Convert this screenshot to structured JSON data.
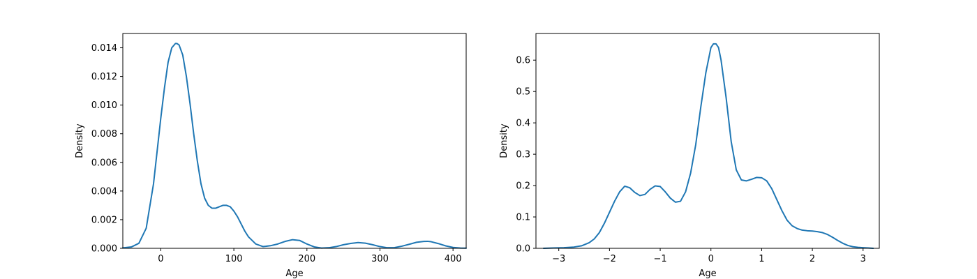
{
  "chart_data": [
    {
      "type": "line",
      "title": "",
      "xlabel": "Age",
      "ylabel": "Density",
      "xlim": [
        -52,
        418
      ],
      "ylim": [
        0,
        0.015
      ],
      "xticks": [
        0,
        100,
        200,
        300,
        400
      ],
      "xtick_labels": [
        "0",
        "100",
        "200",
        "300",
        "400"
      ],
      "yticks": [
        0,
        0.002,
        0.004,
        0.006,
        0.008,
        0.01,
        0.012,
        0.014
      ],
      "ytick_labels": [
        "0.000",
        "0.002",
        "0.004",
        "0.006",
        "0.008",
        "0.010",
        "0.012",
        "0.014"
      ],
      "grid": false,
      "series": [
        {
          "color": "#1f77b4",
          "x": [
            -52,
            -40,
            -30,
            -20,
            -10,
            0,
            5,
            10,
            15,
            20,
            22,
            25,
            30,
            35,
            40,
            45,
            50,
            55,
            60,
            65,
            70,
            75,
            80,
            85,
            90,
            95,
            100,
            105,
            110,
            115,
            120,
            130,
            140,
            150,
            160,
            170,
            180,
            190,
            200,
            210,
            220,
            230,
            240,
            250,
            260,
            270,
            280,
            290,
            300,
            310,
            320,
            330,
            340,
            350,
            360,
            365,
            370,
            380,
            390,
            400,
            410,
            418
          ],
          "y": [
            3e-05,
            0.0001,
            0.00035,
            0.0014,
            0.0045,
            0.0091,
            0.0112,
            0.013,
            0.014,
            0.0143,
            0.0143,
            0.0142,
            0.0135,
            0.012,
            0.0101,
            0.008,
            0.0061,
            0.0045,
            0.0035,
            0.003,
            0.0028,
            0.0028,
            0.0029,
            0.003,
            0.003,
            0.0029,
            0.0026,
            0.0022,
            0.0017,
            0.0012,
            0.0008,
            0.0003,
            0.00012,
            0.00018,
            0.0003,
            0.00048,
            0.0006,
            0.00055,
            0.0003,
            0.0001,
            2e-05,
            4e-05,
            0.00012,
            0.00025,
            0.00034,
            0.0004,
            0.00036,
            0.00025,
            0.00012,
            4e-05,
            5e-05,
            0.00015,
            0.00028,
            0.00042,
            0.00048,
            0.00049,
            0.00046,
            0.00033,
            0.00017,
            6e-05,
            2e-05,
            1e-05
          ]
        }
      ]
    },
    {
      "type": "line",
      "title": "",
      "xlabel": "Age",
      "ylabel": "Density",
      "xlim": [
        -3.45,
        3.32
      ],
      "ylim": [
        0,
        0.685
      ],
      "xticks": [
        -3,
        -2,
        -1,
        0,
        1,
        2,
        3
      ],
      "xtick_labels": [
        "−3",
        "−2",
        "−1",
        "0",
        "1",
        "2",
        "3"
      ],
      "yticks": [
        0,
        0.1,
        0.2,
        0.3,
        0.4,
        0.5,
        0.6
      ],
      "ytick_labels": [
        "0.0",
        "0.1",
        "0.2",
        "0.3",
        "0.4",
        "0.5",
        "0.6"
      ],
      "grid": false,
      "series": [
        {
          "color": "#1f77b4",
          "x": [
            -3.3,
            -3.1,
            -2.9,
            -2.7,
            -2.55,
            -2.4,
            -2.3,
            -2.2,
            -2.1,
            -2.0,
            -1.9,
            -1.8,
            -1.7,
            -1.6,
            -1.5,
            -1.4,
            -1.3,
            -1.2,
            -1.1,
            -1.0,
            -0.9,
            -0.8,
            -0.7,
            -0.6,
            -0.5,
            -0.4,
            -0.3,
            -0.2,
            -0.1,
            0.0,
            0.05,
            0.1,
            0.15,
            0.2,
            0.3,
            0.4,
            0.5,
            0.6,
            0.7,
            0.8,
            0.9,
            1.0,
            1.1,
            1.2,
            1.3,
            1.4,
            1.5,
            1.6,
            1.7,
            1.8,
            1.9,
            2.0,
            2.1,
            2.2,
            2.3,
            2.4,
            2.5,
            2.6,
            2.7,
            2.8,
            2.9,
            3.0,
            3.1,
            3.2
          ],
          "y": [
            0.0,
            0.001,
            0.002,
            0.004,
            0.008,
            0.018,
            0.03,
            0.05,
            0.08,
            0.115,
            0.15,
            0.18,
            0.198,
            0.193,
            0.178,
            0.168,
            0.172,
            0.188,
            0.199,
            0.197,
            0.18,
            0.16,
            0.147,
            0.15,
            0.18,
            0.24,
            0.33,
            0.45,
            0.56,
            0.64,
            0.652,
            0.652,
            0.64,
            0.6,
            0.48,
            0.34,
            0.25,
            0.218,
            0.215,
            0.22,
            0.226,
            0.225,
            0.215,
            0.19,
            0.155,
            0.12,
            0.09,
            0.072,
            0.063,
            0.058,
            0.056,
            0.055,
            0.053,
            0.05,
            0.044,
            0.035,
            0.025,
            0.016,
            0.009,
            0.005,
            0.003,
            0.002,
            0.001,
            0.0
          ]
        }
      ]
    }
  ]
}
